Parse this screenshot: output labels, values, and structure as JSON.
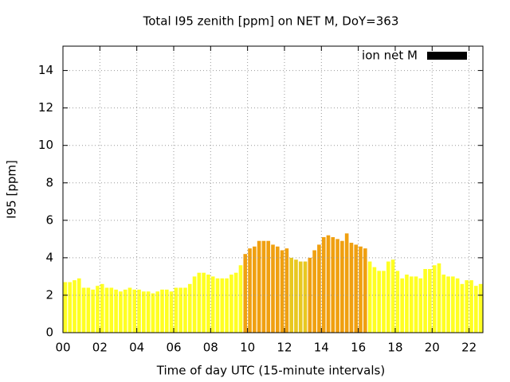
{
  "chart_data": {
    "type": "bar",
    "title": "Total I95 zenith [ppm] on NET M, DoY=363",
    "xlabel": "Time of day UTC (15-minute intervals)",
    "ylabel": "I95 [ppm]",
    "xlim": [
      0,
      22.75
    ],
    "ylim": [
      0,
      15.3
    ],
    "xticks": [
      {
        "value": 0,
        "label": "00"
      },
      {
        "value": 2,
        "label": "02"
      },
      {
        "value": 4,
        "label": "04"
      },
      {
        "value": 6,
        "label": "06"
      },
      {
        "value": 8,
        "label": "08"
      },
      10,
      12,
      14,
      16,
      18,
      20,
      22
    ],
    "yticks": [
      0,
      2,
      4,
      6,
      8,
      10,
      12,
      14
    ],
    "grid": true,
    "legend": "upper right",
    "x": [
      0.125,
      0.375,
      0.625,
      0.875,
      1.125,
      1.375,
      1.625,
      1.875,
      2.125,
      2.375,
      2.625,
      2.875,
      3.125,
      3.375,
      3.625,
      3.875,
      4.125,
      4.375,
      4.625,
      4.875,
      5.125,
      5.375,
      5.625,
      5.875,
      6.125,
      6.375,
      6.625,
      6.875,
      7.125,
      7.375,
      7.625,
      7.875,
      8.125,
      8.375,
      8.625,
      8.875,
      9.125,
      9.375,
      9.625,
      9.875,
      10.125,
      10.375,
      10.625,
      10.875,
      11.125,
      11.375,
      11.625,
      11.875,
      12.125,
      12.375,
      12.625,
      12.875,
      13.125,
      13.375,
      13.625,
      13.875,
      14.125,
      14.375,
      14.625,
      14.875,
      15.125,
      15.375,
      15.625,
      15.875,
      16.125,
      16.375,
      16.625,
      16.875,
      17.125,
      17.375,
      17.625,
      17.875,
      18.125,
      18.375,
      18.625,
      18.875,
      19.125,
      19.375,
      19.625,
      19.875,
      20.125,
      20.375,
      20.625,
      20.875,
      21.125,
      21.375,
      21.625,
      21.875,
      22.125,
      22.375,
      22.625
    ],
    "series": [
      {
        "name": "ion net M",
        "color": "#000000",
        "values": [
          2.7,
          2.7,
          2.8,
          2.9,
          2.4,
          2.4,
          2.3,
          2.5,
          2.6,
          2.4,
          2.4,
          2.3,
          2.2,
          2.3,
          2.4,
          2.3,
          2.3,
          2.2,
          2.2,
          2.1,
          2.2,
          2.3,
          2.3,
          2.2,
          2.4,
          2.4,
          2.4,
          2.6,
          3.0,
          3.2,
          3.2,
          3.1,
          3.0,
          2.9,
          2.9,
          2.9,
          3.1,
          3.2,
          3.6,
          4.2,
          4.5,
          4.6,
          4.9,
          4.9,
          4.9,
          4.7,
          4.6,
          4.4,
          4.5,
          4.0,
          3.9,
          3.8,
          3.8,
          4.0,
          4.4,
          4.7,
          5.1,
          5.2,
          5.1,
          5.0,
          4.9,
          5.3,
          4.8,
          4.7,
          4.6,
          4.5,
          3.8,
          3.5,
          3.3,
          3.3,
          3.8,
          3.9,
          3.3,
          2.9,
          3.1,
          3.0,
          3.0,
          2.9,
          3.4,
          3.4,
          3.6,
          3.7,
          3.1,
          3.0,
          3.0,
          2.9,
          2.6,
          2.8,
          2.8,
          2.5,
          2.6
        ],
        "colors": [
          "#ffff22",
          "#ffff22",
          "#ffff22",
          "#ffff22",
          "#ffff22",
          "#ffff22",
          "#ffff22",
          "#ffff22",
          "#ffff22",
          "#ffff22",
          "#ffff22",
          "#ffff22",
          "#ffff22",
          "#ffff22",
          "#ffff22",
          "#ffff22",
          "#ffff22",
          "#ffff22",
          "#ffff22",
          "#ffff22",
          "#ffff22",
          "#ffff22",
          "#ffff22",
          "#ffff22",
          "#ffff22",
          "#ffff22",
          "#ffff22",
          "#ffff22",
          "#ffff22",
          "#ffff22",
          "#ffff22",
          "#ffff22",
          "#ffff22",
          "#ffff22",
          "#ffff22",
          "#ffff22",
          "#ffff22",
          "#ffff22",
          "#ffff22",
          "#f0a010",
          "#f0a010",
          "#f0a010",
          "#f0a010",
          "#f0a010",
          "#f0a010",
          "#f0a010",
          "#f0a010",
          "#f0a010",
          "#f0a010",
          "#e8c820",
          "#e8c820",
          "#e8c820",
          "#e8c820",
          "#f0a010",
          "#f0a010",
          "#f0a010",
          "#f0a010",
          "#f0a010",
          "#f0a010",
          "#f0a010",
          "#f0a010",
          "#f0a010",
          "#f0a010",
          "#f0a010",
          "#f0a010",
          "#f0a010",
          "#ffff22",
          "#ffff22",
          "#ffff22",
          "#ffff22",
          "#ffff22",
          "#ffff22",
          "#ffff22",
          "#ffff22",
          "#ffff22",
          "#ffff22",
          "#ffff22",
          "#ffff22",
          "#ffff22",
          "#ffff22",
          "#ffff22",
          "#ffff22",
          "#ffff22",
          "#ffff22",
          "#ffff22",
          "#ffff22",
          "#ffff22",
          "#ffff22",
          "#ffff22",
          "#ffff22",
          "#ffff22"
        ]
      }
    ]
  }
}
